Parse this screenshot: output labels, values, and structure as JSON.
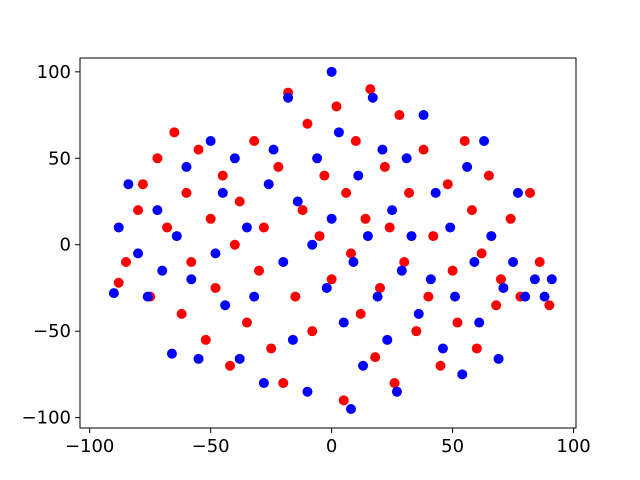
{
  "chart_data": {
    "type": "scatter",
    "xlim": [
      -104,
      101
    ],
    "ylim": [
      -106,
      108
    ],
    "xticks": [
      {
        "value": -100,
        "label": "−100"
      },
      {
        "value": -50,
        "label": "−50"
      },
      0,
      50,
      100
    ],
    "yticks": [
      {
        "value": -100,
        "label": "−100"
      },
      {
        "value": -50,
        "label": "−50"
      },
      0,
      50,
      100
    ],
    "series": [
      {
        "color": "#ff0000",
        "x": [
          -88,
          -85,
          -80,
          -78,
          -75,
          -72,
          -68,
          -65,
          -62,
          -60,
          -58,
          -55,
          -52,
          -50,
          -48,
          -45,
          -42,
          -40,
          -38,
          -35,
          -32,
          -30,
          -28,
          -25,
          -22,
          -20,
          -18,
          -15,
          -12,
          -10,
          -8,
          -5,
          -3,
          0,
          2,
          5,
          6,
          8,
          10,
          12,
          14,
          16,
          18,
          20,
          22,
          24,
          26,
          28,
          30,
          32,
          35,
          38,
          40,
          42,
          45,
          48,
          50,
          52,
          55,
          58,
          60,
          62,
          65,
          68,
          70,
          74,
          78,
          82,
          86,
          90
        ],
        "y": [
          -22,
          -10,
          20,
          35,
          -30,
          50,
          10,
          65,
          -40,
          30,
          -10,
          55,
          -55,
          15,
          -25,
          40,
          -70,
          0,
          25,
          -45,
          60,
          -15,
          10,
          -60,
          45,
          -80,
          88,
          -30,
          20,
          70,
          -50,
          5,
          40,
          -20,
          80,
          -90,
          30,
          -5,
          60,
          -40,
          15,
          90,
          -65,
          -25,
          45,
          10,
          -80,
          75,
          -10,
          30,
          -50,
          55,
          -30,
          5,
          -70,
          35,
          -15,
          -45,
          60,
          20,
          -60,
          -5,
          40,
          -35,
          -20,
          15,
          -30,
          30,
          -10,
          -35
        ]
      },
      {
        "color": "#0000ff",
        "x": [
          -90,
          -88,
          -84,
          -80,
          -76,
          -72,
          -70,
          -66,
          -64,
          -60,
          -58,
          -55,
          -50,
          -48,
          -45,
          -44,
          -40,
          -38,
          -35,
          -32,
          -28,
          -26,
          -24,
          -20,
          -18,
          -16,
          -14,
          -10,
          -8,
          -6,
          -2,
          0,
          0,
          3,
          5,
          8,
          9,
          11,
          13,
          15,
          17,
          19,
          21,
          23,
          25,
          27,
          29,
          31,
          33,
          36,
          38,
          41,
          43,
          46,
          49,
          51,
          54,
          56,
          59,
          61,
          63,
          66,
          69,
          71,
          75,
          77,
          80,
          84,
          88,
          91
        ],
        "y": [
          -28,
          10,
          35,
          -5,
          -30,
          20,
          -15,
          -63,
          5,
          45,
          -20,
          -66,
          60,
          -5,
          30,
          -35,
          50,
          -66,
          10,
          -30,
          -80,
          35,
          55,
          -10,
          85,
          -55,
          25,
          -85,
          0,
          50,
          -25,
          100,
          15,
          65,
          -45,
          -95,
          -10,
          40,
          -70,
          5,
          85,
          -30,
          55,
          -55,
          20,
          -85,
          -15,
          50,
          5,
          -40,
          75,
          -20,
          30,
          -60,
          10,
          -30,
          -75,
          45,
          -10,
          -45,
          60,
          5,
          -66,
          -25,
          -10,
          30,
          -30,
          -20,
          -30,
          -20
        ]
      }
    ]
  }
}
